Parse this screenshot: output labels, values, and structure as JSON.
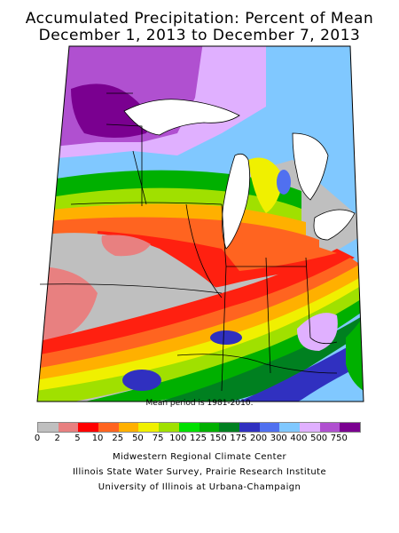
{
  "title_line1": "Accumulated Precipitation: Percent of Mean",
  "title_line2": "December 1, 2013 to December 7, 2013",
  "mean_period_note": "Mean period is 1981-2010.",
  "legend": {
    "colors": [
      "#bfbfbf",
      "#e88080",
      "#ff0000",
      "#ff6420",
      "#ffb000",
      "#f0f000",
      "#a0e000",
      "#00e000",
      "#00b000",
      "#008020",
      "#3030c0",
      "#5070f0",
      "#80c8ff",
      "#e0b0ff",
      "#b050d0",
      "#7a0090"
    ],
    "labels": [
      "0",
      "2",
      "5",
      "10",
      "25",
      "50",
      "75",
      "100",
      "125",
      "150",
      "175",
      "200",
      "300",
      "400",
      "500",
      "750"
    ]
  },
  "credits": {
    "line1": "Midwestern Regional Climate Center",
    "line2": "Illinois State Water Survey, Prairie Research Institute",
    "line3": "University of Illinois at Urbana-Champaign"
  },
  "colors": {
    "gray": "#bfbfbf",
    "pink": "#e88080",
    "red": "#ff2010",
    "orange": "#ff6420",
    "gold": "#ffb000",
    "yellow": "#f0f000",
    "lime": "#a0e000",
    "green": "#00e000",
    "midgreen": "#00b000",
    "darkgreen": "#008020",
    "navy": "#3030c0",
    "blue": "#5070f0",
    "lightblue": "#80c8ff",
    "lilac": "#e0b0ff",
    "violet": "#b050d0",
    "purple": "#7a0090"
  }
}
